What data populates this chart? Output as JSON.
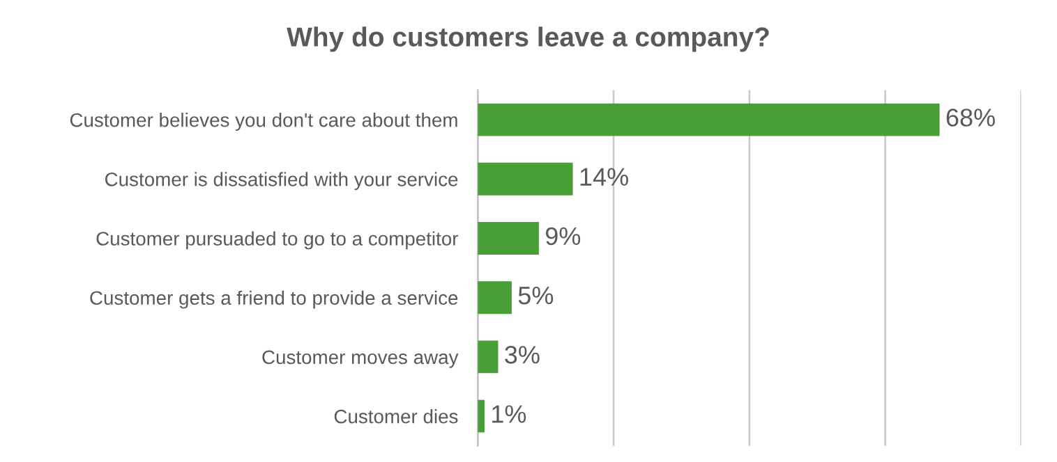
{
  "chart_data": {
    "type": "bar",
    "orientation": "horizontal",
    "title": "Why do customers leave a company?",
    "categories": [
      "Customer believes you don't care about them",
      "Customer is dissatisfied with your service",
      "Customer pursuaded to go to a competitor",
      "Customer gets a friend to provide a service",
      "Customer moves away",
      "Customer dies"
    ],
    "values": [
      68,
      14,
      9,
      5,
      3,
      1
    ],
    "value_labels": [
      "68%",
      "14%",
      "9%",
      "5%",
      "3%",
      "1%"
    ],
    "color": "#4a9e37",
    "xlim": [
      0,
      80
    ],
    "xticks": [
      {
        "value": 0,
        "label": null
      },
      {
        "value": 20,
        "label": null
      },
      {
        "value": 40,
        "label": null
      },
      {
        "value": 60,
        "label": null
      },
      {
        "value": 80,
        "label": null
      }
    ],
    "tick_labels": "y",
    "grid": "x"
  }
}
